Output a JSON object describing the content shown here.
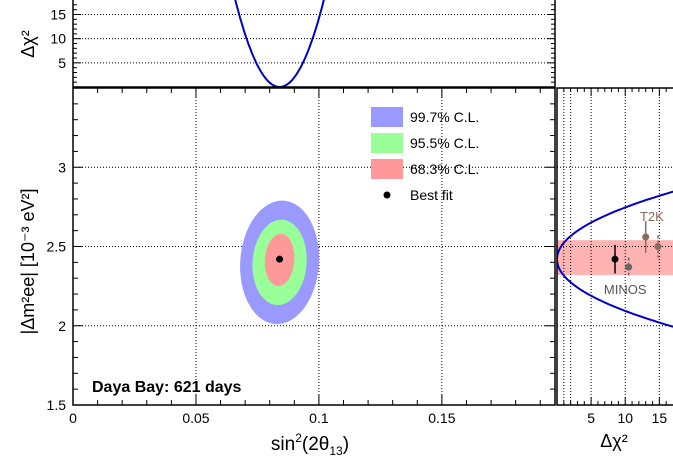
{
  "chart_data": {
    "type": "contour",
    "main": {
      "xlabel_base": "sin",
      "xlabel_sup": "2",
      "xlabel_rest_pre": "(2θ",
      "xlabel_sub": "13",
      "xlabel_rest_post": ")",
      "ylabel_text": "|Δm²ee| [10⁻³ eV²]",
      "xlim": [
        0,
        0.196
      ],
      "ylim": [
        1.5,
        3.5
      ],
      "x_ticks": [
        "0",
        "0.05",
        "0.1",
        "0.15"
      ],
      "x_tick_values": [
        0,
        0.05,
        0.1,
        0.15
      ],
      "y_ticks": [
        "1.5",
        "2",
        "2.5",
        "3"
      ],
      "y_tick_values": [
        1.5,
        2,
        2.5,
        3
      ],
      "grid": true,
      "best_fit": {
        "x": 0.084,
        "y": 2.42
      },
      "contours": [
        {
          "name": "99.7% C.L.",
          "color": "#9999ff",
          "x_range": [
            0.068,
            0.1
          ],
          "y_range": [
            2.01,
            2.79
          ],
          "tilt_deg": 4
        },
        {
          "name": "95.5% C.L.",
          "color": "#99ff99",
          "x_range": [
            0.073,
            0.095
          ],
          "y_range": [
            2.13,
            2.67
          ],
          "tilt_deg": 4
        },
        {
          "name": "68.3% C.L.",
          "color": "#ff9999",
          "x_range": [
            0.078,
            0.09
          ],
          "y_range": [
            2.25,
            2.58
          ],
          "tilt_deg": 4
        }
      ],
      "legend": [
        {
          "label": "99.7% C.L.",
          "color": "#9999ff",
          "kind": "box"
        },
        {
          "label": "95.5% C.L.",
          "color": "#99ff99",
          "kind": "box"
        },
        {
          "label": "68.3% C.L.",
          "color": "#ff9999",
          "kind": "box"
        },
        {
          "label": "Best fit",
          "color": "#000000",
          "kind": "dot"
        }
      ],
      "annotation": "Daya Bay: 621 days"
    },
    "top": {
      "ylabel_text": "Δχ²",
      "ylim": [
        0,
        18
      ],
      "y_ticks": [
        "5",
        "10",
        "15"
      ],
      "y_tick_values": [
        5,
        10,
        15
      ],
      "curve_min_x": 0.084,
      "curve_color": "#0000cc"
    },
    "right": {
      "xlabel_text": "Δχ²",
      "xlim": [
        0,
        17
      ],
      "x_ticks": [
        "5",
        "10",
        "15"
      ],
      "x_tick_values": [
        5,
        10,
        15
      ],
      "curve_min_y": 2.42,
      "curve_color": "#0000cc",
      "band": {
        "y_range": [
          2.32,
          2.54
        ],
        "color": "#ffb3b3"
      },
      "points": [
        {
          "label": "MINOS",
          "x": 8.5,
          "y": 2.42,
          "err": [
            0.09,
            0.09
          ],
          "style": "solid",
          "color": "#000000"
        },
        {
          "label": "MINOS",
          "x": 10.5,
          "y": 2.37,
          "err": [
            0.06,
            0.06
          ],
          "style": "dashed",
          "color": "#666666"
        },
        {
          "label": "T2K",
          "x": 13.0,
          "y": 2.56,
          "err": [
            0.1,
            0.1
          ],
          "style": "solid",
          "color": "#8b6a5a"
        },
        {
          "label": "T2K",
          "x": 14.8,
          "y": 2.5,
          "err": [
            0.07,
            0.07
          ],
          "style": "dashed",
          "color": "#8b6a5a"
        }
      ],
      "point_labels": [
        {
          "text": "T2K",
          "color": "#8b6a5a",
          "anchor_x": 13.9,
          "anchor_y": 2.66
        },
        {
          "text": "MINOS",
          "color": "#555555",
          "anchor_x": 10.0,
          "anchor_y": 2.2
        }
      ]
    }
  }
}
